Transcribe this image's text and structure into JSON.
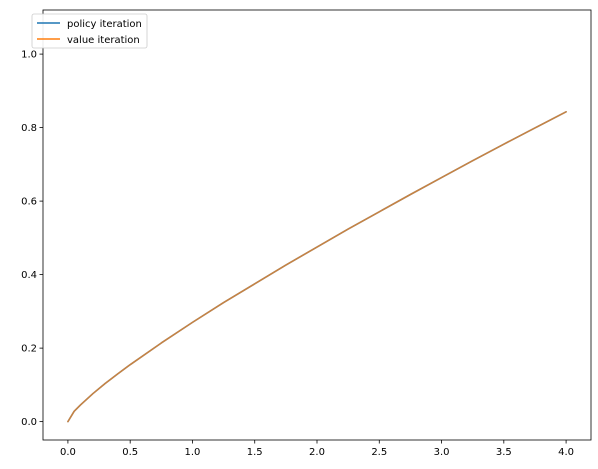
{
  "chart_data": {
    "type": "line",
    "title": "",
    "xlabel": "",
    "ylabel": "",
    "xlim": [
      -0.2,
      4.2
    ],
    "ylim": [
      -0.05,
      1.12
    ],
    "xticks": [
      0.0,
      0.5,
      1.0,
      1.5,
      2.0,
      2.5,
      3.0,
      3.5,
      4.0
    ],
    "xtick_labels": [
      "0.0",
      "0.5",
      "1.0",
      "1.5",
      "2.0",
      "2.5",
      "3.0",
      "3.5",
      "4.0"
    ],
    "yticks": [
      0.0,
      0.2,
      0.4,
      0.6,
      0.8,
      1.0
    ],
    "ytick_labels": [
      "0.0",
      "0.2",
      "0.4",
      "0.6",
      "0.8",
      "1.0"
    ],
    "grid": false,
    "legend": {
      "position": "top-left"
    },
    "x": [
      0.0,
      0.05,
      0.1,
      0.2,
      0.3,
      0.4,
      0.5,
      0.75,
      1.0,
      1.25,
      1.5,
      1.75,
      2.0,
      2.25,
      2.5,
      2.75,
      3.0,
      3.25,
      3.5,
      3.75,
      4.0
    ],
    "series": [
      {
        "name": "policy iteration",
        "color": "#1f77b4",
        "values": [
          0.0,
          0.028,
          0.045,
          0.076,
          0.104,
          0.13,
          0.155,
          0.214,
          0.27,
          0.324,
          0.375,
          0.426,
          0.475,
          0.524,
          0.571,
          0.618,
          0.664,
          0.71,
          0.755,
          0.799,
          0.843
        ]
      },
      {
        "name": "value iteration",
        "color": "#ff7f0e",
        "values": [
          0.0,
          0.028,
          0.045,
          0.076,
          0.104,
          0.13,
          0.155,
          0.214,
          0.27,
          0.324,
          0.375,
          0.426,
          0.475,
          0.524,
          0.571,
          0.618,
          0.664,
          0.71,
          0.755,
          0.799,
          0.843
        ]
      }
    ]
  }
}
